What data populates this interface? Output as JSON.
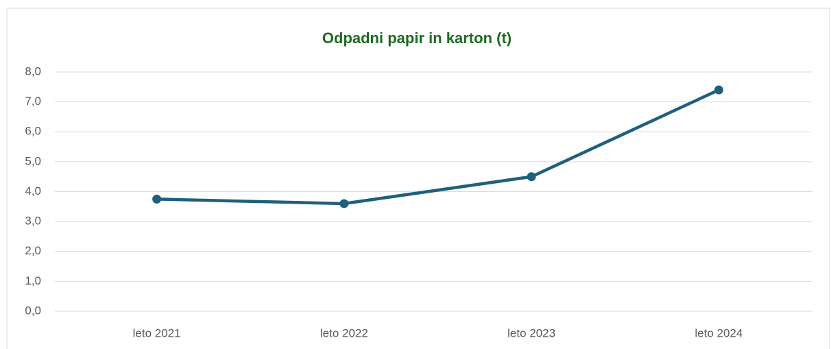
{
  "chart_data": {
    "type": "line",
    "title": "Odpadni papir in karton (t)",
    "categories": [
      "leto 2021",
      "leto 2022",
      "leto 2023",
      "leto 2024"
    ],
    "values": [
      3.75,
      3.6,
      4.5,
      7.4
    ],
    "color": "#1f5f7e",
    "ylim": [
      0,
      8
    ],
    "yticks": [
      {
        "value": 0,
        "label": "0,0"
      },
      {
        "value": 1,
        "label": "1,0"
      },
      {
        "value": 2,
        "label": "2,0"
      },
      {
        "value": 3,
        "label": "3,0"
      },
      {
        "value": 4,
        "label": "4,0"
      },
      {
        "value": 5,
        "label": "5,0"
      },
      {
        "value": 6,
        "label": "6,0"
      },
      {
        "value": 7,
        "label": "7,0"
      },
      {
        "value": 8,
        "label": "8,0"
      }
    ],
    "grid": true
  }
}
